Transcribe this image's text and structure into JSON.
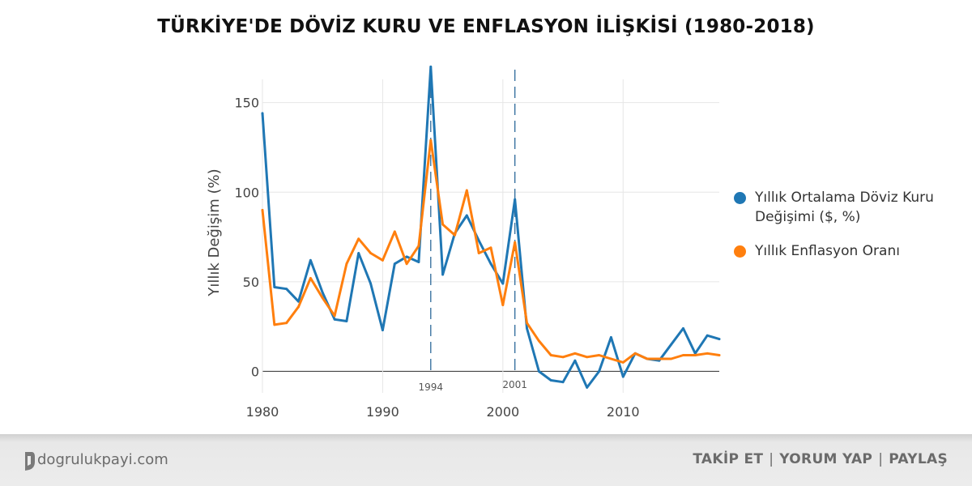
{
  "title": "TÜRKİYE'DE DÖVİZ KURU VE ENFLASYON İLİŞKİSİ (1980-2018)",
  "colors": {
    "series_blue": "#1f77b4",
    "series_orange": "#ff7f0e",
    "grid": "#e6e6e6",
    "axis_text": "#444444",
    "footer_text": "#6b6b6b"
  },
  "footer": {
    "site": "dogrulukpayi.com",
    "actions": [
      "TAKİP ET",
      "YORUM YAP",
      "PAYLAŞ"
    ]
  },
  "chart_data": {
    "type": "line",
    "title": "",
    "xlabel": "",
    "ylabel": "Yıllık Değişim (%)",
    "xlim": [
      1980,
      2018
    ],
    "ylim": [
      -12,
      172
    ],
    "x_ticks": [
      1980,
      1990,
      2000,
      2010
    ],
    "y_ticks": [
      0,
      50,
      100,
      150
    ],
    "grid": true,
    "legend_position": "right",
    "x": [
      1980,
      1981,
      1982,
      1983,
      1984,
      1985,
      1986,
      1987,
      1988,
      1989,
      1990,
      1991,
      1992,
      1993,
      1994,
      1995,
      1996,
      1997,
      1998,
      1999,
      2000,
      2001,
      2002,
      2003,
      2004,
      2005,
      2006,
      2007,
      2008,
      2009,
      2010,
      2011,
      2012,
      2013,
      2014,
      2015,
      2016,
      2017,
      2018
    ],
    "series": [
      {
        "name": "Yıllık Ortalama Döviz Kuru Değişimi ($, %)",
        "color": "#1f77b4",
        "values": [
          144,
          47,
          46,
          39,
          62,
          44,
          29,
          28,
          66,
          49,
          23,
          60,
          64,
          61,
          170,
          54,
          77,
          87,
          73,
          60,
          49,
          96,
          24,
          0,
          -5,
          -6,
          6,
          -9,
          0,
          19,
          -3,
          10,
          7,
          6,
          15,
          24,
          10,
          20,
          18
        ]
      },
      {
        "name": "Yıllık Enflasyon Oranı",
        "color": "#ff7f0e",
        "values": [
          90,
          26,
          27,
          36,
          52,
          41,
          31,
          60,
          74,
          66,
          62,
          78,
          60,
          70,
          129,
          82,
          76,
          101,
          66,
          69,
          37,
          72,
          27,
          17,
          9,
          8,
          10,
          8,
          9,
          7,
          5,
          10,
          7,
          7,
          7,
          9,
          9,
          10,
          9
        ]
      }
    ],
    "annotations": [
      {
        "x": 1994,
        "label": "1994",
        "style": "dashed-vertical"
      },
      {
        "x": 2001,
        "label": "2001",
        "style": "dashed-vertical"
      }
    ]
  }
}
